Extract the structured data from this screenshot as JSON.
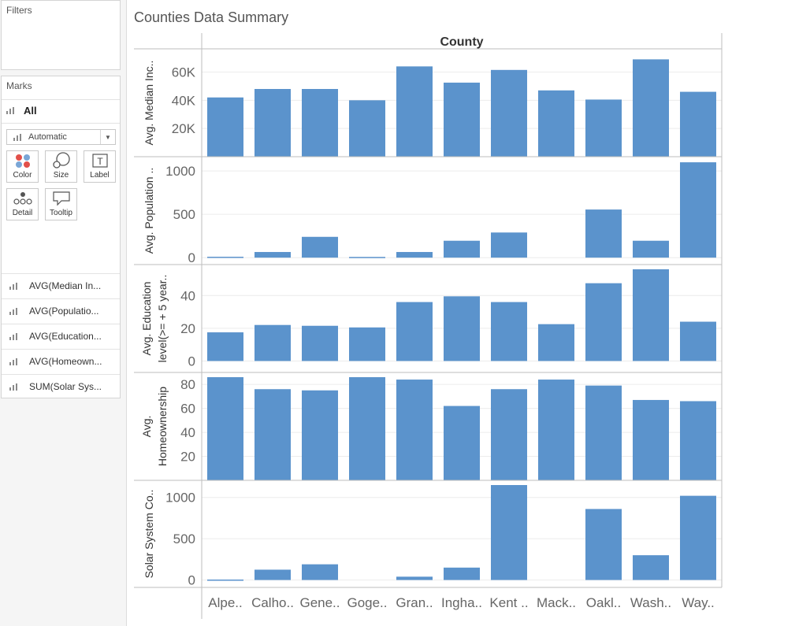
{
  "sidebar": {
    "filters_title": "Filters",
    "marks_title": "Marks",
    "all_label": "All",
    "mark_type": "Automatic",
    "buttons": {
      "color": "Color",
      "size": "Size",
      "label": "Label",
      "detail": "Detail",
      "tooltip": "Tooltip"
    },
    "fields": [
      {
        "label": "AVG(Median In..."
      },
      {
        "label": "AVG(Populatio..."
      },
      {
        "label": "AVG(Education..."
      },
      {
        "label": "AVG(Homeown..."
      },
      {
        "label": "SUM(Solar Sys..."
      }
    ]
  },
  "view": {
    "title": "Counties Data Summary"
  },
  "colors": {
    "bar": "#5b93cc",
    "grid": "#ececec",
    "axis": "#bdbdbd"
  },
  "chart_data": {
    "type": "bar",
    "column_header": "County",
    "categories": [
      "Alpe..",
      "Calho..",
      "Gene..",
      "Goge..",
      "Gran..",
      "Ingha..",
      "Kent ..",
      "Mack..",
      "Oakl..",
      "Wash..",
      "Way.."
    ],
    "panes": [
      {
        "label_lines": [
          "Avg. Median Inc.."
        ],
        "ylim": [
          0,
          72000
        ],
        "ticks": [
          20000,
          40000,
          60000
        ],
        "tick_labels": [
          "20K",
          "40K",
          "60K"
        ],
        "values": [
          42000,
          48000,
          48000,
          40000,
          64000,
          52500,
          61500,
          47000,
          40500,
          69000,
          46000
        ]
      },
      {
        "label_lines": [
          "Avg. Population .."
        ],
        "ylim": [
          -80,
          1110
        ],
        "ticks": [
          0,
          500,
          1000
        ],
        "tick_labels": [
          "0",
          "500",
          "1000"
        ],
        "values": [
          10,
          65,
          240,
          8,
          65,
          195,
          290,
          0,
          555,
          195,
          1100
        ]
      },
      {
        "label_lines": [
          "Avg. Education",
          "level(>= + 5 year.."
        ],
        "ylim": [
          -7,
          56
        ],
        "ticks": [
          0,
          20,
          40
        ],
        "tick_labels": [
          "0",
          "20",
          "40"
        ],
        "values": [
          17.5,
          22,
          21.5,
          20.5,
          36,
          39.5,
          36,
          22.5,
          47.5,
          56,
          24
        ]
      },
      {
        "label_lines": [
          "Avg.",
          "Homeownership"
        ],
        "ylim": [
          0,
          86
        ],
        "ticks": [
          20,
          40,
          60,
          80
        ],
        "tick_labels": [
          "20",
          "40",
          "60",
          "80"
        ],
        "values": [
          86,
          76,
          75,
          86,
          84,
          62,
          76,
          84,
          79,
          67,
          66
        ]
      },
      {
        "label_lines": [
          "Solar System Co.."
        ],
        "ylim": [
          -90,
          1150
        ],
        "ticks": [
          0,
          500,
          1000
        ],
        "tick_labels": [
          "0",
          "500",
          "1000"
        ],
        "values": [
          5,
          125,
          190,
          0,
          40,
          150,
          1150,
          0,
          860,
          300,
          1020
        ]
      }
    ]
  }
}
